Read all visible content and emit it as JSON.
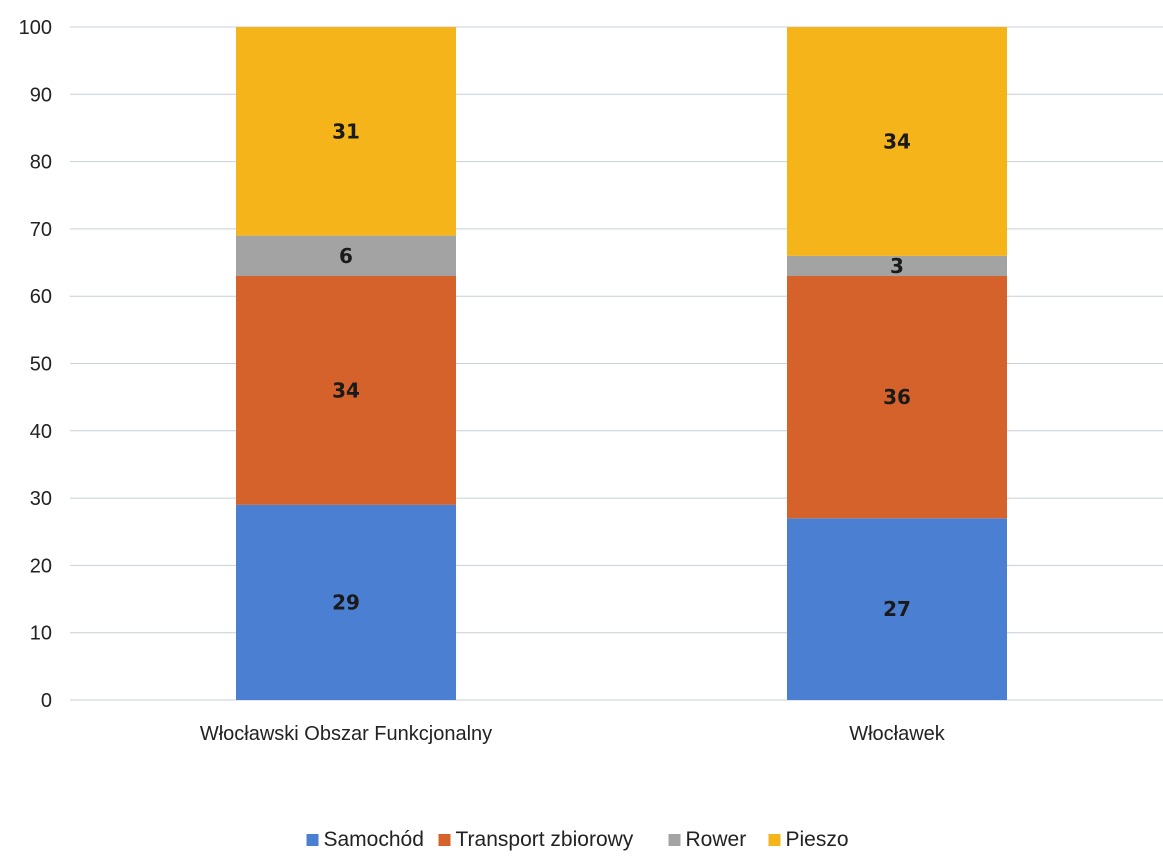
{
  "chart_data": {
    "type": "bar",
    "stacked": true,
    "title": "",
    "xlabel": "",
    "ylabel": "",
    "ylim": [
      0,
      100
    ],
    "yticks": [
      0,
      10,
      20,
      30,
      40,
      50,
      60,
      70,
      80,
      90,
      100
    ],
    "grid": true,
    "legend_position": "bottom",
    "categories": [
      "Włocławski Obszar Funkcjonalny",
      "Włocławek"
    ],
    "series": [
      {
        "name": "Samochód",
        "color": "#4a7fd1",
        "values": [
          29,
          27
        ]
      },
      {
        "name": "Transport zbiorowy",
        "color": "#d4622a",
        "values": [
          34,
          36
        ]
      },
      {
        "name": "Rower",
        "color": "#a3a3a3",
        "values": [
          6,
          3
        ]
      },
      {
        "name": "Pieszo",
        "color": "#f4b41a",
        "values": [
          31,
          34
        ]
      }
    ]
  }
}
